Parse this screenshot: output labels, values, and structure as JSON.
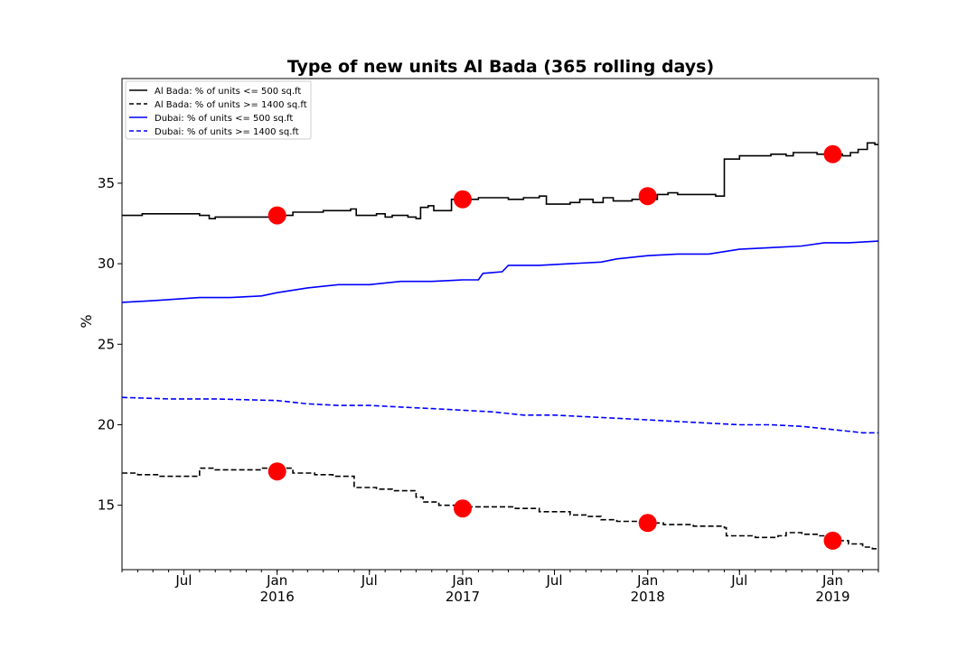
{
  "chart_data": {
    "type": "line",
    "title": "Type of new units Al Bada (365 rolling days)",
    "xlabel": "",
    "ylabel": "%",
    "x_range": [
      "2015-03-01",
      "2019-04-01"
    ],
    "ylim": [
      11.0,
      41.5
    ],
    "yticks": [
      15,
      20,
      25,
      30,
      35
    ],
    "xticks": [
      {
        "date": "2015-07-01",
        "label": "Jul",
        "sublabel": ""
      },
      {
        "date": "2016-01-01",
        "label": "Jan",
        "sublabel": "2016"
      },
      {
        "date": "2016-07-01",
        "label": "Jul",
        "sublabel": ""
      },
      {
        "date": "2017-01-01",
        "label": "Jan",
        "sublabel": "2017"
      },
      {
        "date": "2017-07-01",
        "label": "Jul",
        "sublabel": ""
      },
      {
        "date": "2018-01-01",
        "label": "Jan",
        "sublabel": "2018"
      },
      {
        "date": "2018-07-01",
        "label": "Jul",
        "sublabel": ""
      },
      {
        "date": "2019-01-01",
        "label": "Jan",
        "sublabel": "2019"
      }
    ],
    "grid": false,
    "legend_position": "upper-left",
    "series": [
      {
        "name": "Al Bada: % of units <= 500 sq.ft",
        "color": "#000000",
        "style": "solid",
        "step": true,
        "points": [
          [
            "2015-03-01",
            33.0
          ],
          [
            "2015-04-10",
            33.1
          ],
          [
            "2015-08-01",
            33.0
          ],
          [
            "2015-08-20",
            32.8
          ],
          [
            "2015-09-01",
            32.9
          ],
          [
            "2016-01-01",
            33.0
          ],
          [
            "2016-02-01",
            33.2
          ],
          [
            "2016-04-01",
            33.3
          ],
          [
            "2016-05-25",
            33.4
          ],
          [
            "2016-06-05",
            33.0
          ],
          [
            "2016-07-15",
            33.1
          ],
          [
            "2016-08-01",
            32.9
          ],
          [
            "2016-08-15",
            33.0
          ],
          [
            "2016-09-15",
            32.9
          ],
          [
            "2016-10-01",
            32.8
          ],
          [
            "2016-10-10",
            33.5
          ],
          [
            "2016-10-25",
            33.6
          ],
          [
            "2016-11-05",
            33.3
          ],
          [
            "2016-12-10",
            34.0
          ],
          [
            "2017-02-01",
            34.1
          ],
          [
            "2017-04-01",
            34.0
          ],
          [
            "2017-05-01",
            34.1
          ],
          [
            "2017-06-01",
            34.2
          ],
          [
            "2017-06-15",
            33.7
          ],
          [
            "2017-08-01",
            33.8
          ],
          [
            "2017-08-20",
            34.0
          ],
          [
            "2017-09-15",
            33.8
          ],
          [
            "2017-10-05",
            34.1
          ],
          [
            "2017-10-25",
            33.9
          ],
          [
            "2017-12-01",
            34.0
          ],
          [
            "2018-01-20",
            34.3
          ],
          [
            "2018-02-10",
            34.4
          ],
          [
            "2018-03-01",
            34.3
          ],
          [
            "2018-05-15",
            34.2
          ],
          [
            "2018-06-01",
            36.5
          ],
          [
            "2018-07-01",
            36.7
          ],
          [
            "2018-08-01",
            36.7
          ],
          [
            "2018-09-01",
            36.8
          ],
          [
            "2018-10-01",
            36.7
          ],
          [
            "2018-10-15",
            36.9
          ],
          [
            "2018-12-01",
            36.8
          ],
          [
            "2019-01-20",
            36.7
          ],
          [
            "2019-02-05",
            36.9
          ],
          [
            "2019-02-20",
            37.1
          ],
          [
            "2019-03-10",
            37.5
          ],
          [
            "2019-03-25",
            37.4
          ],
          [
            "2019-04-01",
            37.4
          ]
        ],
        "markers": [
          [
            "2016-01-01",
            33.0
          ],
          [
            "2017-01-01",
            34.0
          ],
          [
            "2018-01-01",
            34.2
          ],
          [
            "2019-01-01",
            36.8
          ]
        ]
      },
      {
        "name": "Al Bada: % of units >= 1400 sq.ft",
        "color": "#000000",
        "style": "dashed",
        "step": true,
        "points": [
          [
            "2015-03-01",
            17.0
          ],
          [
            "2015-04-01",
            16.9
          ],
          [
            "2015-05-15",
            16.8
          ],
          [
            "2015-08-01",
            17.3
          ],
          [
            "2015-09-01",
            17.2
          ],
          [
            "2015-12-01",
            17.3
          ],
          [
            "2016-02-01",
            17.0
          ],
          [
            "2016-03-15",
            16.9
          ],
          [
            "2016-04-20",
            16.8
          ],
          [
            "2016-06-01",
            16.1
          ],
          [
            "2016-07-15",
            16.0
          ],
          [
            "2016-08-15",
            15.9
          ],
          [
            "2016-10-01",
            15.5
          ],
          [
            "2016-10-15",
            15.2
          ],
          [
            "2016-11-15",
            15.0
          ],
          [
            "2017-01-15",
            14.9
          ],
          [
            "2017-04-15",
            14.8
          ],
          [
            "2017-06-01",
            14.6
          ],
          [
            "2017-08-01",
            14.4
          ],
          [
            "2017-09-01",
            14.3
          ],
          [
            "2017-10-01",
            14.1
          ],
          [
            "2017-11-01",
            14.0
          ],
          [
            "2018-01-01",
            13.9
          ],
          [
            "2018-02-01",
            13.8
          ],
          [
            "2018-04-01",
            13.7
          ],
          [
            "2018-06-01",
            13.6
          ],
          [
            "2018-06-05",
            13.1
          ],
          [
            "2018-08-01",
            13.0
          ],
          [
            "2018-09-15",
            13.1
          ],
          [
            "2018-10-01",
            13.3
          ],
          [
            "2018-11-01",
            13.2
          ],
          [
            "2018-12-01",
            13.1
          ],
          [
            "2019-01-01",
            12.8
          ],
          [
            "2019-02-01",
            12.6
          ],
          [
            "2019-03-01",
            12.4
          ],
          [
            "2019-03-20",
            12.3
          ],
          [
            "2019-04-01",
            12.3
          ]
        ],
        "markers": [
          [
            "2016-01-01",
            17.1
          ],
          [
            "2017-01-01",
            14.8
          ],
          [
            "2018-01-01",
            13.9
          ],
          [
            "2019-01-01",
            12.8
          ]
        ]
      },
      {
        "name": "Dubai: % of units <= 500 sq.ft",
        "color": "#0000ff",
        "style": "solid",
        "step": false,
        "points": [
          [
            "2015-03-01",
            27.6
          ],
          [
            "2015-05-01",
            27.7
          ],
          [
            "2015-08-01",
            27.9
          ],
          [
            "2015-10-01",
            27.9
          ],
          [
            "2015-12-01",
            28.0
          ],
          [
            "2016-01-01",
            28.2
          ],
          [
            "2016-03-01",
            28.5
          ],
          [
            "2016-05-01",
            28.7
          ],
          [
            "2016-07-01",
            28.7
          ],
          [
            "2016-09-01",
            28.9
          ],
          [
            "2016-11-01",
            28.9
          ],
          [
            "2017-01-01",
            29.0
          ],
          [
            "2017-02-01",
            29.0
          ],
          [
            "2017-02-10",
            29.4
          ],
          [
            "2017-03-20",
            29.5
          ],
          [
            "2017-04-01",
            29.9
          ],
          [
            "2017-06-01",
            29.9
          ],
          [
            "2017-08-01",
            30.0
          ],
          [
            "2017-10-01",
            30.1
          ],
          [
            "2017-11-01",
            30.3
          ],
          [
            "2018-01-01",
            30.5
          ],
          [
            "2018-03-01",
            30.6
          ],
          [
            "2018-05-01",
            30.6
          ],
          [
            "2018-07-01",
            30.9
          ],
          [
            "2018-09-01",
            31.0
          ],
          [
            "2018-11-01",
            31.1
          ],
          [
            "2018-12-15",
            31.3
          ],
          [
            "2019-02-01",
            31.3
          ],
          [
            "2019-04-01",
            31.4
          ]
        ],
        "markers": []
      },
      {
        "name": "Dubai: % of units >= 1400 sq.ft",
        "color": "#0000ff",
        "style": "dashed",
        "step": false,
        "points": [
          [
            "2015-03-01",
            21.7
          ],
          [
            "2015-06-01",
            21.6
          ],
          [
            "2015-09-01",
            21.6
          ],
          [
            "2016-01-01",
            21.5
          ],
          [
            "2016-03-01",
            21.3
          ],
          [
            "2016-05-01",
            21.2
          ],
          [
            "2016-07-01",
            21.2
          ],
          [
            "2016-09-01",
            21.1
          ],
          [
            "2016-11-01",
            21.0
          ],
          [
            "2017-01-01",
            20.9
          ],
          [
            "2017-03-01",
            20.8
          ],
          [
            "2017-05-01",
            20.6
          ],
          [
            "2017-07-01",
            20.6
          ],
          [
            "2017-09-01",
            20.5
          ],
          [
            "2017-11-01",
            20.4
          ],
          [
            "2018-01-01",
            20.3
          ],
          [
            "2018-03-01",
            20.2
          ],
          [
            "2018-05-01",
            20.1
          ],
          [
            "2018-07-01",
            20.0
          ],
          [
            "2018-09-01",
            20.0
          ],
          [
            "2018-11-01",
            19.9
          ],
          [
            "2019-01-01",
            19.7
          ],
          [
            "2019-03-01",
            19.5
          ],
          [
            "2019-04-01",
            19.5
          ]
        ],
        "markers": []
      }
    ]
  }
}
